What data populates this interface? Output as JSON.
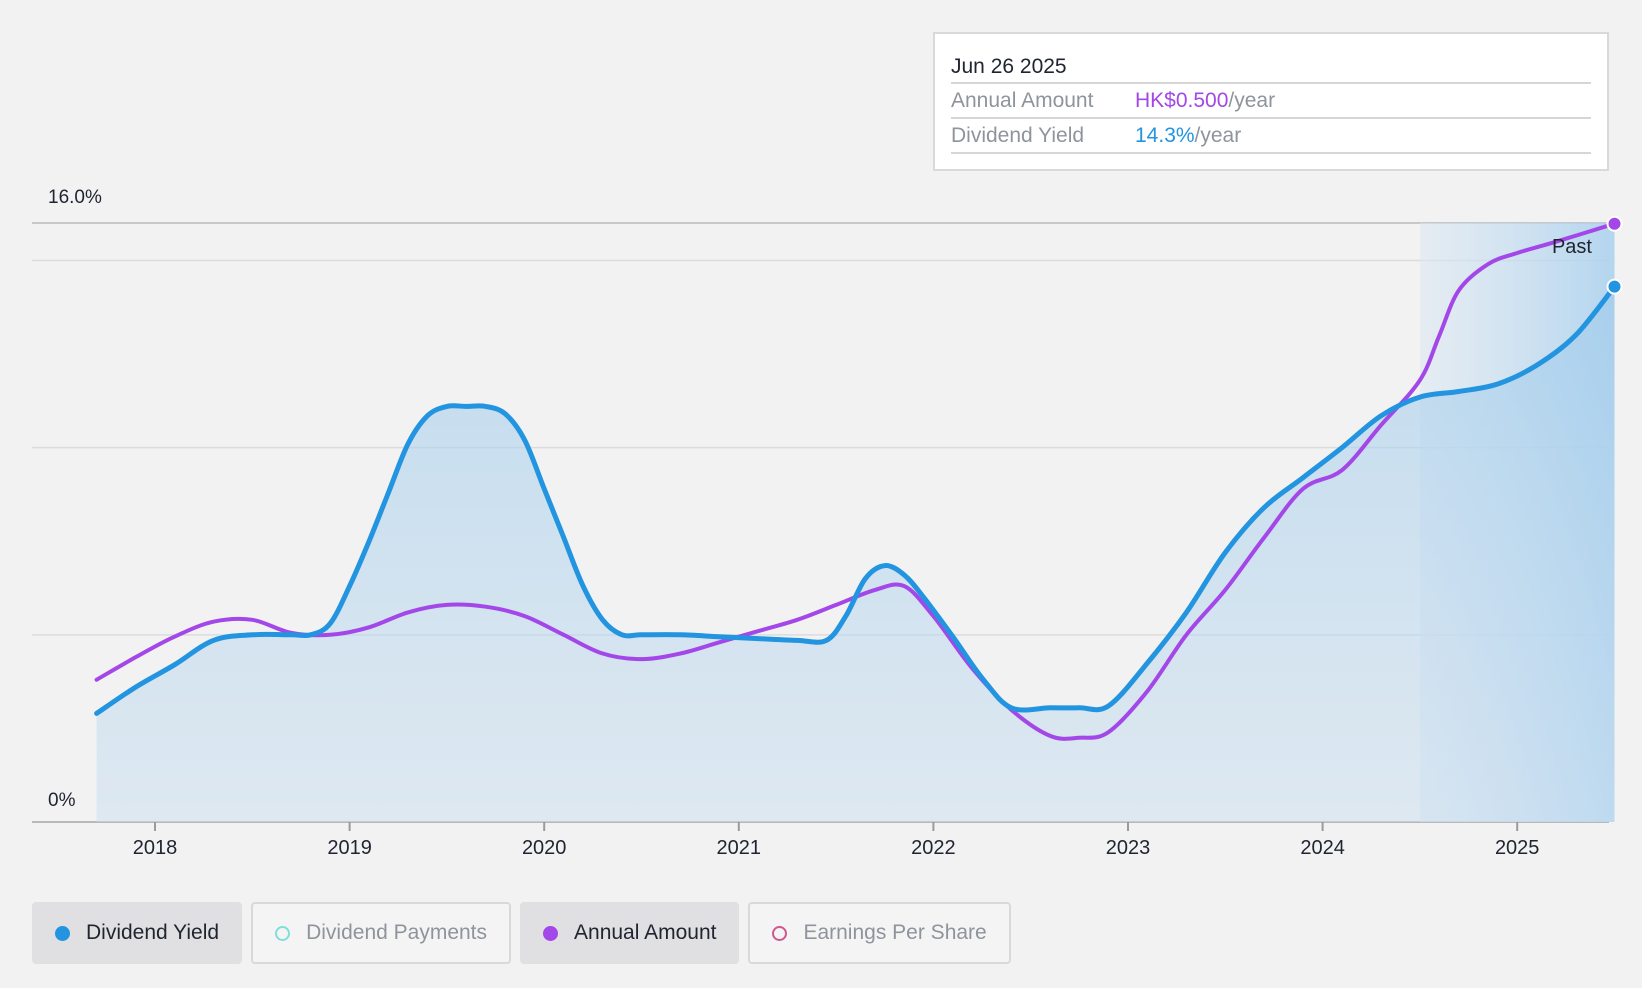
{
  "chart_data": {
    "type": "line",
    "y_labels": {
      "top": "16.0%",
      "bottom": "0%"
    },
    "ylim": [
      0,
      16
    ],
    "xlim": [
      2017.7,
      2025.5
    ],
    "x_ticks": [
      "2018",
      "2019",
      "2020",
      "2021",
      "2022",
      "2023",
      "2024",
      "2025"
    ],
    "gridlines": [
      0,
      5,
      10,
      15,
      16
    ],
    "past_region_start": 2024.5,
    "past_label": "Past",
    "series": [
      {
        "name": "Dividend Yield",
        "color": "#2394e0",
        "x": [
          2017.7,
          2017.9,
          2018.1,
          2018.3,
          2018.5,
          2018.7,
          2018.8,
          2018.9,
          2019.0,
          2019.1,
          2019.2,
          2019.3,
          2019.4,
          2019.5,
          2019.6,
          2019.7,
          2019.8,
          2019.9,
          2020.0,
          2020.1,
          2020.2,
          2020.3,
          2020.4,
          2020.5,
          2020.7,
          2020.9,
          2021.1,
          2021.3,
          2021.45,
          2021.55,
          2021.65,
          2021.75,
          2021.85,
          2021.95,
          2022.1,
          2022.25,
          2022.4,
          2022.6,
          2022.75,
          2022.9,
          2023.1,
          2023.3,
          2023.5,
          2023.7,
          2023.9,
          2024.1,
          2024.3,
          2024.5,
          2024.7,
          2024.9,
          2025.1,
          2025.3,
          2025.5
        ],
        "values": [
          2.9,
          3.6,
          4.2,
          4.85,
          5.0,
          5.0,
          5.0,
          5.3,
          6.3,
          7.5,
          8.8,
          10.1,
          10.85,
          11.1,
          11.1,
          11.1,
          10.9,
          10.2,
          8.9,
          7.6,
          6.3,
          5.4,
          5.0,
          5.0,
          5.0,
          4.95,
          4.9,
          4.85,
          4.85,
          5.5,
          6.5,
          6.85,
          6.6,
          6.0,
          4.95,
          3.85,
          3.05,
          3.05,
          3.05,
          3.1,
          4.25,
          5.6,
          7.2,
          8.4,
          9.2,
          10.0,
          10.85,
          11.35,
          11.5,
          11.7,
          12.2,
          13.0,
          14.3
        ]
      },
      {
        "name": "Annual Amount",
        "unit": "HK$",
        "color": "#a347e8",
        "x": [
          2017.7,
          2017.9,
          2018.1,
          2018.3,
          2018.5,
          2018.7,
          2018.9,
          2019.1,
          2019.3,
          2019.5,
          2019.7,
          2019.9,
          2020.1,
          2020.3,
          2020.5,
          2020.7,
          2020.9,
          2021.1,
          2021.3,
          2021.5,
          2021.7,
          2021.85,
          2022.0,
          2022.2,
          2022.4,
          2022.6,
          2022.75,
          2022.9,
          2023.1,
          2023.3,
          2023.5,
          2023.7,
          2023.9,
          2024.1,
          2024.3,
          2024.5,
          2024.6,
          2024.7,
          2024.85,
          2025.0,
          2025.2,
          2025.5
        ],
        "values": [
          3.8,
          4.4,
          4.95,
          5.35,
          5.4,
          5.05,
          5.0,
          5.2,
          5.6,
          5.8,
          5.75,
          5.5,
          5.0,
          4.5,
          4.35,
          4.5,
          4.8,
          5.1,
          5.4,
          5.8,
          6.2,
          6.3,
          5.5,
          4.1,
          3.0,
          2.3,
          2.25,
          2.4,
          3.5,
          5.0,
          6.2,
          7.6,
          8.9,
          9.4,
          10.6,
          11.8,
          13.0,
          14.2,
          14.9,
          15.2,
          15.5,
          15.98
        ]
      }
    ]
  },
  "tooltip": {
    "date": "Jun 26 2025",
    "annual_amount_label": "Annual Amount",
    "annual_amount_value": "HK$0.500",
    "annual_amount_unit": "/year",
    "dividend_yield_label": "Dividend Yield",
    "dividend_yield_value": "14.3%",
    "dividend_yield_unit": "/year"
  },
  "legend": {
    "items": [
      {
        "label": "Dividend Yield",
        "active": true,
        "color": "#2394e0",
        "hollow": false
      },
      {
        "label": "Dividend Payments",
        "active": false,
        "color": "#7ee0d8",
        "hollow": true
      },
      {
        "label": "Annual Amount",
        "active": true,
        "color": "#a347e8",
        "hollow": false
      },
      {
        "label": "Earnings Per Share",
        "active": false,
        "color": "#d0578e",
        "hollow": true
      }
    ]
  }
}
